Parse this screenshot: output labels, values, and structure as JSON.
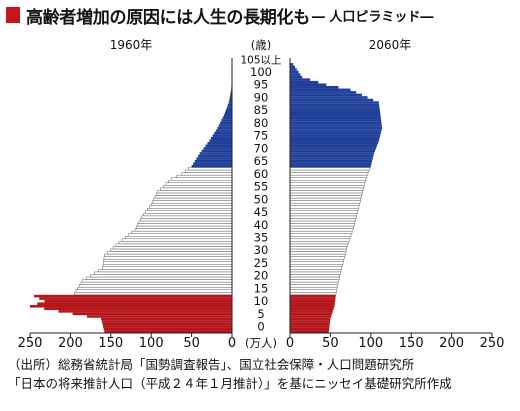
{
  "title": "高齢者増加の原因には人生の長期化も",
  "subtitle": "― 人口ピラミッド―",
  "colors": {
    "elderly": "#1f3f99",
    "working": "#ffffff",
    "young": "#b5161b",
    "accent": "#c4161c"
  },
  "chart_data": {
    "type": "bar",
    "subtype": "population-pyramid",
    "age_axis_label": "(歳)",
    "unit_label": "(万人)",
    "age_ticks": [
      "105以上",
      "100",
      "95",
      "90",
      "85",
      "80",
      "75",
      "70",
      "65",
      "60",
      "55",
      "50",
      "45",
      "40",
      "35",
      "30",
      "25",
      "20",
      "15",
      "10",
      "5",
      "0"
    ],
    "value_ticks": [
      0,
      50,
      100,
      150,
      200,
      250
    ],
    "xlim": [
      0,
      250
    ],
    "age_groups_note": "0-14 young, 15-64 working, 65+ elderly",
    "panels": [
      {
        "name": "1960年",
        "side": "left",
        "ages": [
          0,
          5,
          10,
          12,
          14,
          15,
          20,
          25,
          30,
          35,
          40,
          45,
          50,
          55,
          60,
          62,
          65,
          70,
          75,
          80,
          85,
          90,
          95,
          100
        ],
        "values": [
          158,
          162,
          250,
          232,
          245,
          195,
          185,
          160,
          158,
          140,
          120,
          112,
          100,
          92,
          75,
          62,
          50,
          40,
          28,
          18,
          10,
          4,
          1,
          0
        ]
      },
      {
        "name": "2060年",
        "side": "right",
        "ages": [
          0,
          5,
          10,
          15,
          20,
          25,
          30,
          35,
          40,
          45,
          50,
          55,
          60,
          65,
          70,
          75,
          80,
          85,
          90,
          95,
          97,
          100,
          105
        ],
        "values": [
          48,
          50,
          55,
          57,
          60,
          64,
          68,
          72,
          78,
          82,
          86,
          90,
          94,
          100,
          104,
          110,
          114,
          112,
          110,
          75,
          45,
          15,
          4
        ]
      }
    ]
  },
  "caption": {
    "line1": "（出所）総務省統計局「国勢調査報告」、国立社会保障・人口問題研究所",
    "line2": "「日本の将来推計人口（平成２４年１月推計）」を基にニッセイ基礎研究所作成"
  }
}
